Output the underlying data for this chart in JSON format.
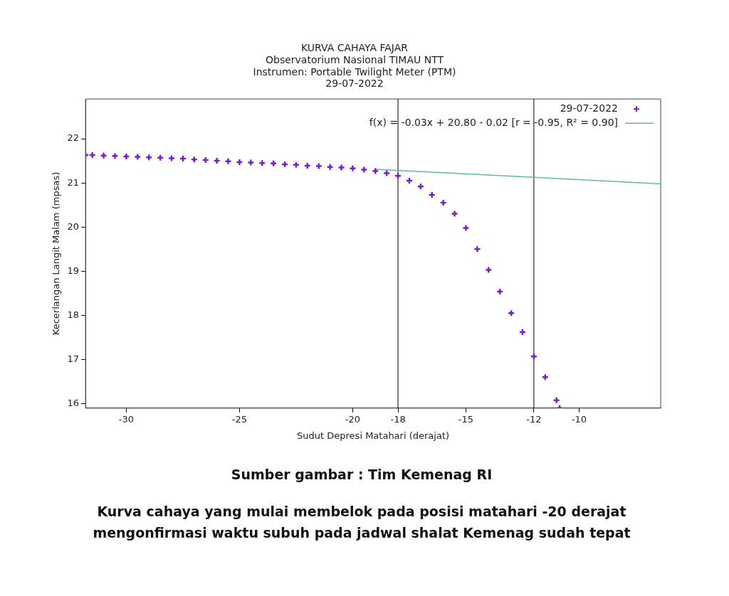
{
  "chart_data": {
    "type": "scatter",
    "title": "KURVA CAHAYA FAJAR",
    "subtitle": "Observatorium Nasional TIMAU NTT\nInstrumen: Portable Twilight Meter (PTM)\n29-07-2022",
    "xlabel": "Sudut Depresi Matahari (derajat)",
    "ylabel": "Kecerlangan Langit Malam (mpsas)",
    "xlim": [
      -31.8,
      -6.4
    ],
    "xticks": [
      -30,
      -25,
      -20,
      -18,
      -15,
      -12,
      -10
    ],
    "ylim": [
      15.9,
      22.9
    ],
    "yticks": [
      16,
      17,
      18,
      19,
      20,
      21,
      22
    ],
    "grid": false,
    "legend": "top right",
    "series": [
      {
        "name": "29-07-2022",
        "marker": "cross",
        "color": "#7b1fc9",
        "x": [
          -31.8,
          -31.5,
          -31,
          -30.5,
          -30,
          -29.5,
          -29,
          -28.5,
          -28,
          -27.5,
          -27,
          -26.5,
          -26,
          -25.5,
          -25,
          -24.5,
          -24,
          -23.5,
          -23,
          -22.5,
          -22,
          -21.5,
          -21,
          -20.5,
          -20,
          -19.5,
          -19,
          -18.5,
          -18,
          -17.5,
          -17,
          -16.5,
          -16,
          -15.5,
          -15,
          -14.5,
          -14,
          -13.5,
          -13,
          -12.5,
          -12,
          -11.5,
          -11,
          -10.86
        ],
        "values": [
          21.63,
          21.63,
          21.62,
          21.61,
          21.6,
          21.59,
          21.58,
          21.57,
          21.56,
          21.55,
          21.53,
          21.52,
          21.5,
          21.49,
          21.47,
          21.46,
          21.45,
          21.44,
          21.42,
          21.41,
          21.39,
          21.38,
          21.36,
          21.35,
          21.33,
          21.3,
          21.27,
          21.22,
          21.16,
          21.05,
          20.92,
          20.73,
          20.55,
          20.3,
          19.98,
          19.5,
          19.03,
          18.54,
          18.05,
          17.62,
          17.07,
          16.6,
          16.08,
          15.9
        ]
      },
      {
        "name": "f(x) = -0.03x + 20.80 - 0.02 [r = -0.95, R² = 0.90]",
        "type": "line",
        "color": "#5fb8a8",
        "x": [
          -19,
          -6.4
        ],
        "values": [
          21.31,
          20.98
        ]
      }
    ],
    "ref_lines": [
      {
        "axis": "x",
        "value": -18,
        "color": "#000000"
      },
      {
        "axis": "x",
        "value": -12,
        "color": "#000000"
      }
    ],
    "annotations": [
      "Sumber gambar : Tim Kemenag RI",
      "Kurva cahaya yang mulai membelok pada posisi matahari -20 derajat mengonfirmasi waktu subuh pada jadwal shalat Kemenag sudah tepat"
    ]
  }
}
